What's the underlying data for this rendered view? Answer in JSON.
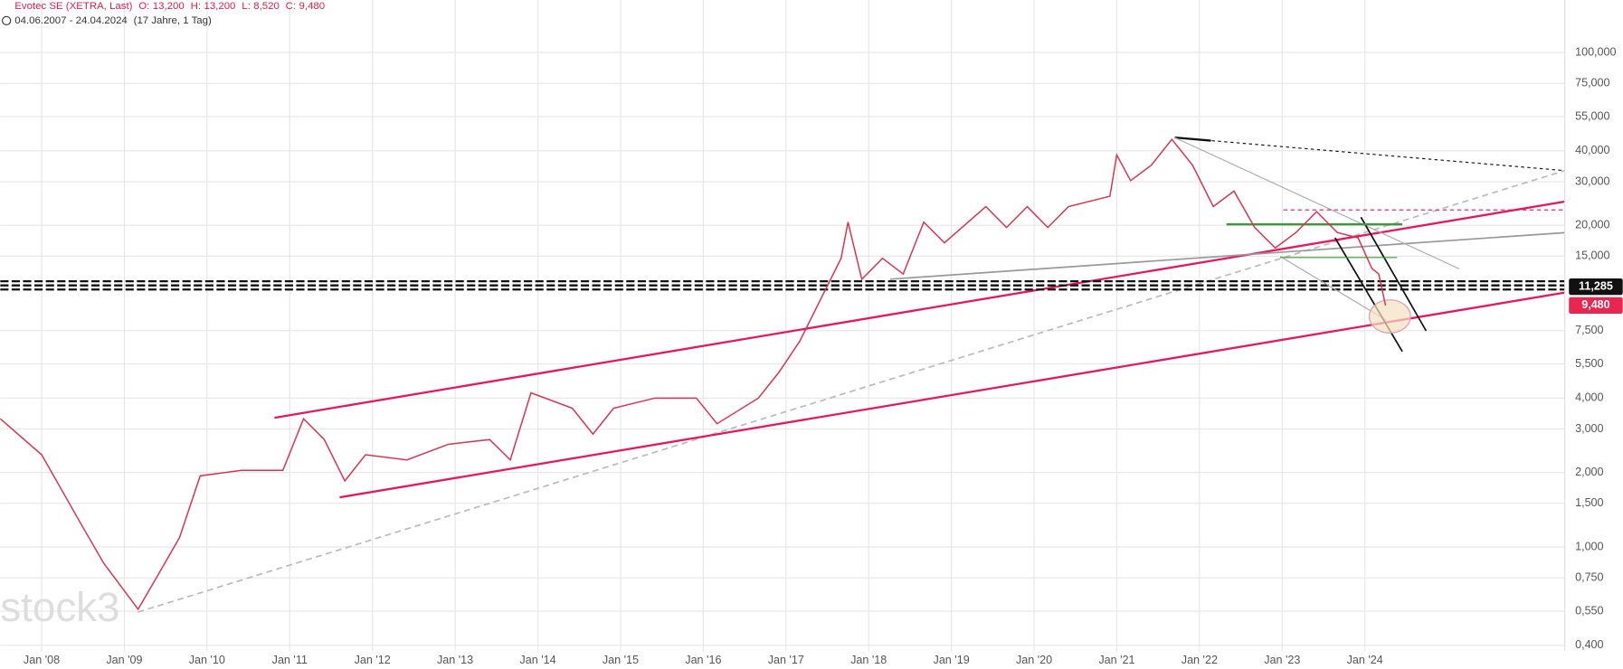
{
  "header": {
    "title": "Evotec SE (XETRA, Last)",
    "ohlc": [
      {
        "key": "O:",
        "value": 13.2,
        "label": "13,200"
      },
      {
        "key": "H:",
        "value": 13.2,
        "label": "13,200"
      },
      {
        "key": "L:",
        "value": 8.52,
        "label": "8,520"
      },
      {
        "key": "C:",
        "value": 9.48,
        "label": "9,480"
      }
    ],
    "range": "04.06.2007 - 24.04.2024",
    "duration": "(17 Jahre, 1 Tag)"
  },
  "chart_data": {
    "type": "line",
    "log_scale": true,
    "grid": true,
    "watermark": "stock3",
    "x": [
      "2007-07",
      "2008-01",
      "2008-07",
      "2008-10",
      "2009-03",
      "2009-06",
      "2009-09",
      "2009-12",
      "2010-06",
      "2010-12",
      "2011-03",
      "2011-06",
      "2011-09",
      "2011-12",
      "2012-06",
      "2012-12",
      "2013-06",
      "2013-09",
      "2013-12",
      "2014-06",
      "2014-09",
      "2014-12",
      "2015-06",
      "2015-12",
      "2016-03",
      "2016-09",
      "2016-12",
      "2017-03",
      "2017-06",
      "2017-09",
      "2017-10",
      "2017-12",
      "2018-03",
      "2018-06",
      "2018-09",
      "2018-12",
      "2019-06",
      "2019-09",
      "2019-12",
      "2020-03",
      "2020-06",
      "2020-12",
      "2021-01",
      "2021-03",
      "2021-06",
      "2021-09",
      "2021-12",
      "2022-03",
      "2022-06",
      "2022-09",
      "2022-12",
      "2023-03",
      "2023-06",
      "2023-09",
      "2023-12",
      "2024-02",
      "2024-03",
      "2024-04"
    ],
    "series": [
      {
        "name": "Evotec SE",
        "color": "#d8344f",
        "values": [
          3.3,
          2.36,
          1.2,
          0.86,
          0.56,
          0.78,
          1.09,
          1.94,
          2.04,
          2.04,
          3.3,
          2.72,
          1.85,
          2.36,
          2.25,
          2.6,
          2.72,
          2.25,
          4.2,
          3.64,
          2.86,
          3.64,
          4.0,
          4.0,
          3.15,
          4.0,
          5.1,
          6.8,
          10.0,
          14.7,
          20.6,
          12.1,
          14.7,
          12.7,
          20.6,
          17.0,
          23.8,
          19.6,
          23.8,
          19.6,
          23.8,
          26.2,
          38.5,
          30.3,
          35.0,
          44.5,
          35.0,
          23.8,
          27.5,
          19.6,
          16.2,
          18.7,
          22.7,
          18.7,
          17.8,
          13.4,
          12.7,
          9.48
        ]
      }
    ],
    "xlim": [
      "2007-07",
      "2026-06"
    ],
    "xticks": [
      {
        "value": "2008-01",
        "label": "Jan '08"
      },
      {
        "value": "2009-01",
        "label": "Jan '09"
      },
      {
        "value": "2010-01",
        "label": "Jan '10"
      },
      {
        "value": "2011-01",
        "label": "Jan '11"
      },
      {
        "value": "2012-01",
        "label": "Jan '12"
      },
      {
        "value": "2013-01",
        "label": "Jan '13"
      },
      {
        "value": "2014-01",
        "label": "Jan '14"
      },
      {
        "value": "2015-01",
        "label": "Jan '15"
      },
      {
        "value": "2016-01",
        "label": "Jan '16"
      },
      {
        "value": "2017-01",
        "label": "Jan '17"
      },
      {
        "value": "2018-01",
        "label": "Jan '18"
      },
      {
        "value": "2019-01",
        "label": "Jan '19"
      },
      {
        "value": "2020-01",
        "label": "Jan '20"
      },
      {
        "value": "2021-01",
        "label": "Jan '21"
      },
      {
        "value": "2022-01",
        "label": "Jan '22"
      },
      {
        "value": "2023-01",
        "label": "Jan '23"
      },
      {
        "value": "2024-01",
        "label": "Jan '24"
      }
    ],
    "ylim": [
      0.378,
      163
    ],
    "yticks": [
      {
        "value": 0.4,
        "label": "0,400"
      },
      {
        "value": 0.55,
        "label": "0,550"
      },
      {
        "value": 0.75,
        "label": "0,750"
      },
      {
        "value": 1,
        "label": "1,000"
      },
      {
        "value": 1.5,
        "label": "1,500"
      },
      {
        "value": 2,
        "label": "2,000"
      },
      {
        "value": 3,
        "label": "3,000"
      },
      {
        "value": 4,
        "label": "4,000"
      },
      {
        "value": 5.5,
        "label": "5,500"
      },
      {
        "value": 7.5,
        "label": "7,500"
      },
      {
        "value": 15,
        "label": "15,000"
      },
      {
        "value": 20,
        "label": "20,000"
      },
      {
        "value": 30,
        "label": "30,000"
      },
      {
        "value": 40,
        "label": "40,000"
      },
      {
        "value": 55,
        "label": "55,000"
      },
      {
        "value": 75,
        "label": "75,000"
      },
      {
        "value": 100,
        "label": "100,000"
      }
    ],
    "price_labels": [
      {
        "value": 11.285,
        "label": "11,285",
        "color": "#111111"
      },
      {
        "value": 9.48,
        "label": "9,480",
        "color": "#e8264f"
      }
    ]
  }
}
